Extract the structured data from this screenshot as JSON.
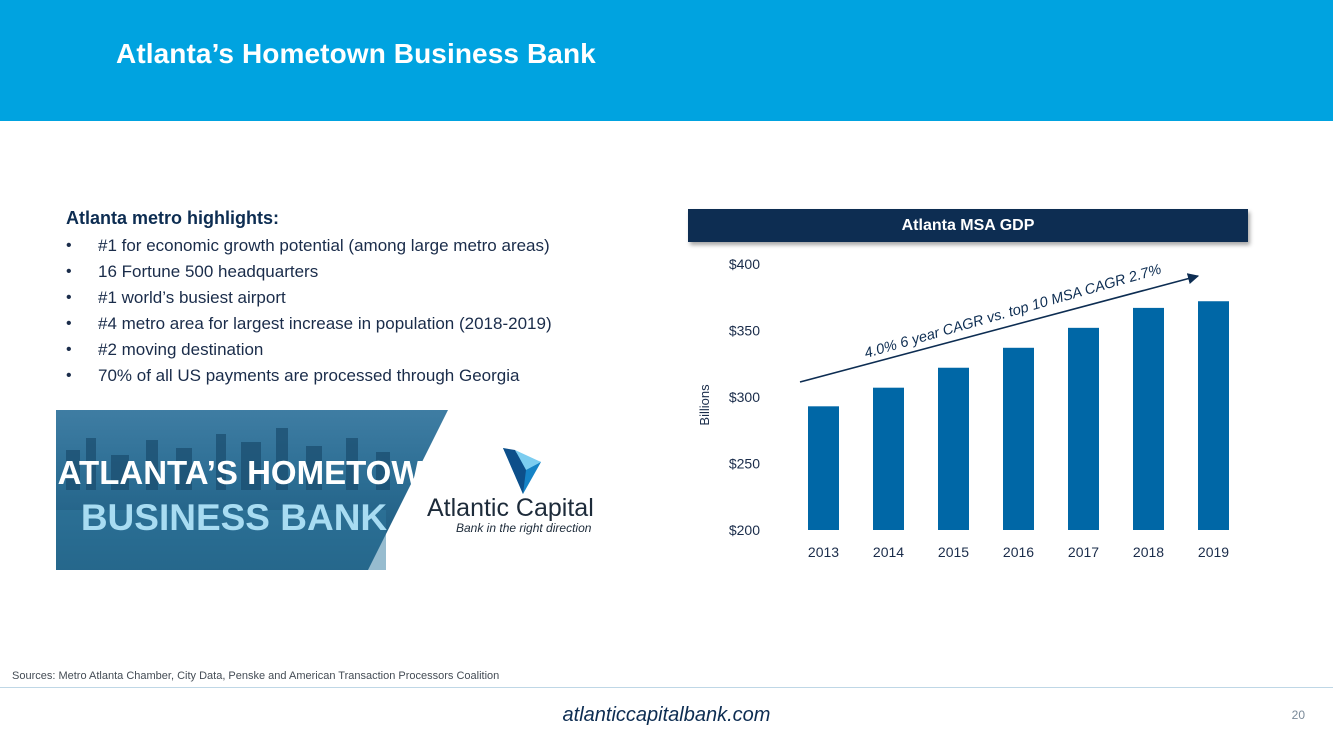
{
  "header": {
    "title": "Atlanta’s Hometown Business Bank"
  },
  "highlights": {
    "heading": "Atlanta metro highlights:",
    "bullet_char": "•",
    "items": [
      "#1 for economic growth potential (among large metro areas)",
      "16 Fortune 500 headquarters",
      "#1 world’s busiest airport",
      "#4 metro area for largest increase in population (2018-2019)",
      "#2 moving destination",
      "70% of all US payments are processed through Georgia"
    ]
  },
  "banner": {
    "line1": "ATLANTA’S HOMETOWN",
    "line2": "BUSINESS BANK",
    "logo_name": "Atlantic Capital",
    "logo_tagline": "Bank in the right direction"
  },
  "chart_data": {
    "type": "bar",
    "title": "Atlanta MSA GDP",
    "ylabel": "Billions",
    "categories": [
      "2013",
      "2014",
      "2015",
      "2016",
      "2017",
      "2018",
      "2019"
    ],
    "values": [
      293,
      307,
      322,
      337,
      352,
      367,
      372
    ],
    "ylim": [
      200,
      400
    ],
    "yticks": [
      "$200",
      "$250",
      "$300",
      "$350",
      "$400"
    ],
    "yticks_values": [
      200,
      250,
      300,
      350,
      400
    ],
    "annotation": "4.0% 6 year CAGR vs. top 10 MSA CAGR 2.7%",
    "bar_color": "#0067a6",
    "grid": false
  },
  "footer": {
    "sources": "Sources: Metro Atlanta Chamber, City Data, Penske and American Transaction Processors Coalition",
    "url": "atlanticcapitalbank.com",
    "page_number": "20"
  },
  "colors": {
    "header_band": "#00a3e0",
    "navy": "#0d2d52",
    "bar": "#0067a6"
  }
}
